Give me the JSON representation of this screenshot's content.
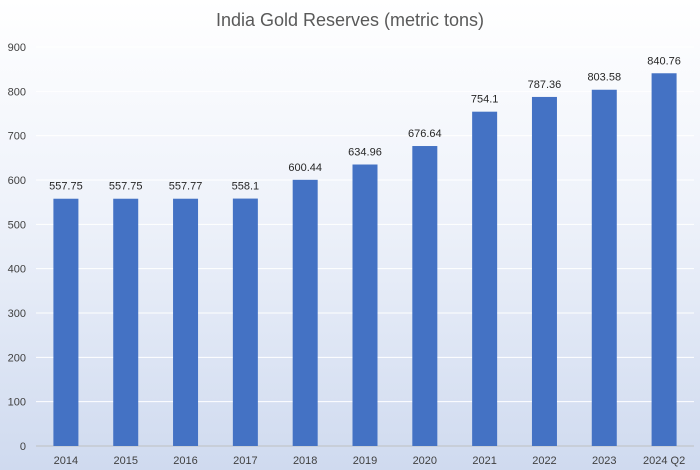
{
  "chart_data": {
    "type": "bar",
    "title": "India Gold Reserves (metric tons)",
    "xlabel": "",
    "ylabel": "",
    "categories": [
      "2014",
      "2015",
      "2016",
      "2017",
      "2018",
      "2019",
      "2020",
      "2021",
      "2022",
      "2023",
      "2024 Q2"
    ],
    "values": [
      557.75,
      557.75,
      557.77,
      558.1,
      600.44,
      634.96,
      676.64,
      754.1,
      787.36,
      803.58,
      840.76
    ],
    "data_labels": [
      "557.75",
      "557.75",
      "557.77",
      "558.1",
      "600.44",
      "634.96",
      "676.64",
      "754.1",
      "787.36",
      "803.58",
      "840.76"
    ],
    "ylim": [
      0,
      900
    ],
    "yticks": [
      0,
      100,
      200,
      300,
      400,
      500,
      600,
      700,
      800,
      900
    ],
    "grid": true,
    "legend": "none",
    "bar_color": "#4472c4"
  }
}
